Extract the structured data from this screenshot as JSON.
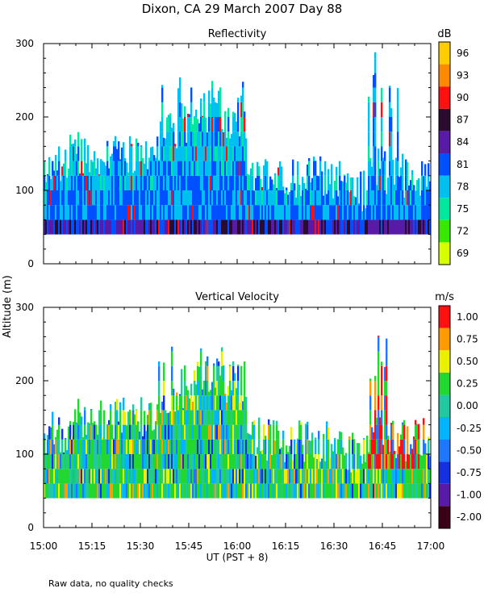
{
  "figure_title": "Dixon, CA 29 March 2007  Day  88",
  "footnote": "Raw data, no quality checks",
  "ylabel": "Altitude (m)",
  "xlabel": "UT  (PST + 8)",
  "chart_data": [
    {
      "type": "heatmap",
      "title": "Reflectivity",
      "colorbar_unit": "dB",
      "colorbar_ticks": [
        "69",
        "72",
        "75",
        "78",
        "81",
        "84",
        "87",
        "90",
        "93",
        "96"
      ],
      "colorbar_colors": [
        "#d8ff00",
        "#38e800",
        "#00e8a0",
        "#00c0f0",
        "#0050ff",
        "#5a1aa8",
        "#2a0c30",
        "#ff1010",
        "#ff8a00",
        "#ffcc00"
      ],
      "x_ticks": [
        "15:00",
        "15:15",
        "15:30",
        "15:45",
        "16:00",
        "16:15",
        "16:30",
        "16:45",
        "17:00"
      ],
      "y_ticks": [
        "0",
        "100",
        "200",
        "300"
      ],
      "xlim": [
        0,
        120
      ],
      "ylim": [
        0,
        300
      ],
      "x_unit": "minutes after 15:00 UT",
      "y_unit": "m",
      "echo_base_altitude": 40
    },
    {
      "type": "heatmap",
      "title": "Vertical Velocity",
      "colorbar_unit": "m/s",
      "colorbar_ticks": [
        "-2.00",
        "-1.00",
        "-0.75",
        "-0.50",
        "-0.25",
        "0.00",
        "0.25",
        "0.50",
        "0.75",
        "1.00"
      ],
      "colorbar_colors": [
        "#3a0018",
        "#5a1aa8",
        "#1530e0",
        "#1e78ff",
        "#00b4ff",
        "#22c8a0",
        "#22d830",
        "#eaf000",
        "#ff9a00",
        "#ff1010"
      ],
      "x_ticks": [
        "15:00",
        "15:15",
        "15:30",
        "15:45",
        "16:00",
        "16:15",
        "16:30",
        "16:45",
        "17:00"
      ],
      "y_ticks": [
        "0",
        "100",
        "200",
        "300"
      ],
      "xlim": [
        0,
        120
      ],
      "ylim": [
        0,
        300
      ],
      "x_unit": "minutes after 15:00 UT",
      "y_unit": "m",
      "echo_base_altitude": 40
    }
  ]
}
